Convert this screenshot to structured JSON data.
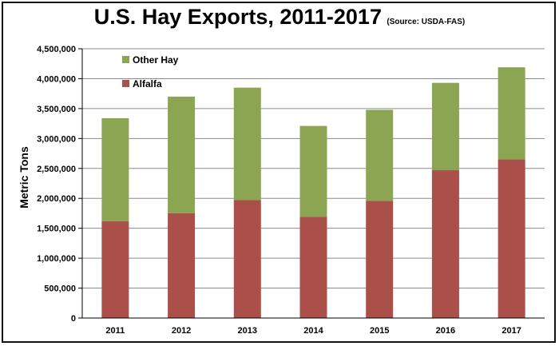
{
  "chart_data": {
    "type": "bar",
    "stacked": true,
    "title": "U.S. Hay Exports, 2011-2017",
    "subtitle": "(Source: USDA-FAS)",
    "ylabel": "Metric Tons",
    "xlabel": "",
    "categories": [
      "2011",
      "2012",
      "2013",
      "2014",
      "2015",
      "2016",
      "2017"
    ],
    "series": [
      {
        "name": "Alfalfa",
        "color": "#aa4f4a",
        "values": [
          1620000,
          1750000,
          1970000,
          1690000,
          1960000,
          2470000,
          2650000
        ]
      },
      {
        "name": "Other Hay",
        "color": "#8ca553",
        "values": [
          1720000,
          1950000,
          1880000,
          1520000,
          1520000,
          1460000,
          1540000
        ]
      }
    ],
    "ylim": [
      0,
      4500000
    ],
    "yticks": [
      "0",
      "500,000",
      "1,000,000",
      "1,500,000",
      "2,000,000",
      "2,500,000",
      "3,000,000",
      "3,500,000",
      "4,000,000",
      "4,500,000"
    ],
    "ytick_values": [
      0,
      500000,
      1000000,
      1500000,
      2000000,
      2500000,
      3000000,
      3500000,
      4000000,
      4500000
    ],
    "grid": true,
    "legend": {
      "position": "top-left",
      "items": [
        "Other Hay",
        "Alfalfa"
      ]
    }
  }
}
